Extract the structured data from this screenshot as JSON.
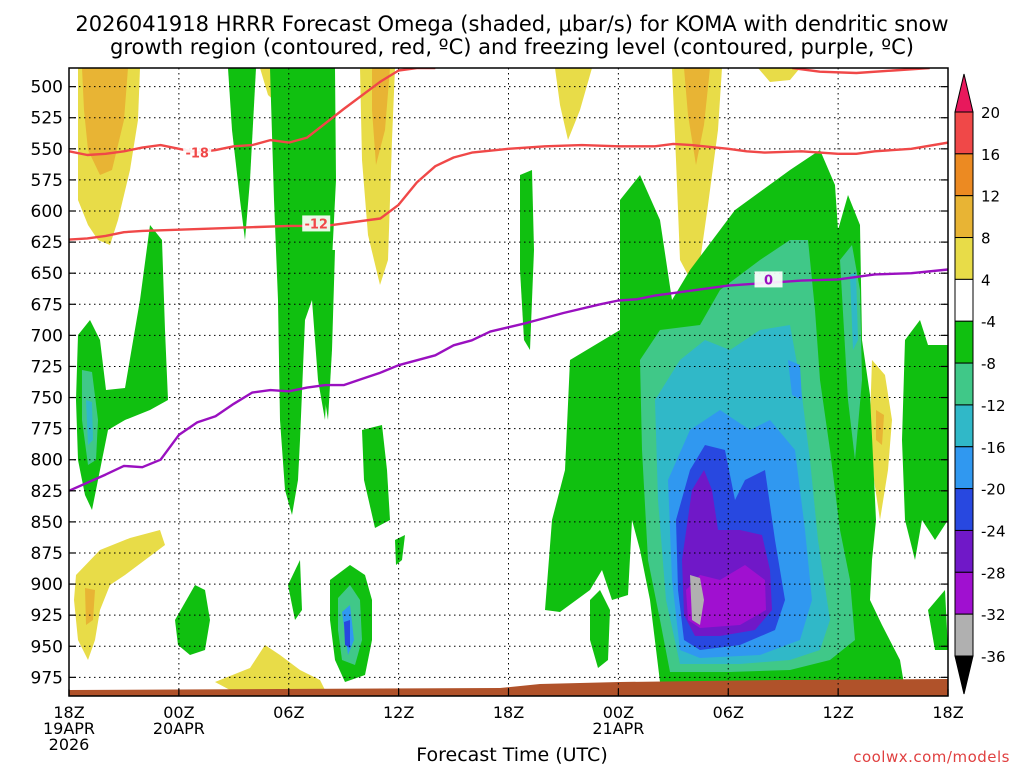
{
  "chart_data": {
    "type": "heatmap",
    "title_line1": "2026041918 HRRR Forecast Omega (shaded, μbar/s) for KOMA with dendritic snow",
    "title_line2": "growth region (contoured, red, ºC) and freezing level (contoured, purple, ºC)",
    "xlabel": "Forecast Time (UTC)",
    "credit": "coolwx.com/models",
    "x_range_hours": [
      0,
      48
    ],
    "y_range_hPa": [
      990,
      485
    ],
    "y_ticks": [
      500,
      525,
      550,
      575,
      600,
      625,
      650,
      675,
      700,
      725,
      750,
      775,
      800,
      825,
      850,
      875,
      900,
      925,
      950,
      975
    ],
    "x_ticks": [
      {
        "h": 0,
        "lines": [
          "18Z",
          "19APR",
          "2026"
        ]
      },
      {
        "h": 6,
        "lines": [
          "00Z",
          "20APR"
        ]
      },
      {
        "h": 12,
        "lines": [
          "06Z"
        ]
      },
      {
        "h": 18,
        "lines": [
          "12Z"
        ]
      },
      {
        "h": 24,
        "lines": [
          "18Z"
        ]
      },
      {
        "h": 30,
        "lines": [
          "00Z",
          "21APR"
        ]
      },
      {
        "h": 36,
        "lines": [
          "06Z"
        ]
      },
      {
        "h": 42,
        "lines": [
          "12Z"
        ]
      },
      {
        "h": 48,
        "lines": [
          "18Z"
        ]
      }
    ],
    "colorbar": {
      "labels": [
        "20",
        "16",
        "12",
        "8",
        "4",
        "-4",
        "-8",
        "-12",
        "-16",
        "-20",
        "-24",
        "-28",
        "-32",
        "-36"
      ],
      "colors": [
        "#e8185c",
        "#f04848",
        "#ec8a22",
        "#e8b434",
        "#e8dc48",
        "#ffffff",
        "#10c010",
        "#40c888",
        "#30b8c8",
        "#3098f0",
        "#2848e0",
        "#7018c8",
        "#a010d0",
        "#b0b0b0",
        "#000000"
      ]
    },
    "contours": [
      {
        "name": "dgz-minus18",
        "color": "#f04848",
        "label": "-18",
        "label_at": [
          7.0,
          553
        ],
        "points": [
          [
            0,
            552
          ],
          [
            1,
            555
          ],
          [
            2,
            554
          ],
          [
            3,
            552
          ],
          [
            4,
            549
          ],
          [
            5,
            547
          ],
          [
            6,
            550
          ],
          [
            7,
            553
          ],
          [
            8,
            551
          ],
          [
            9,
            548
          ],
          [
            10,
            547
          ],
          [
            11,
            543
          ],
          [
            12,
            545
          ],
          [
            13,
            541
          ],
          [
            15,
            518
          ],
          [
            17,
            496
          ],
          [
            18,
            487
          ],
          [
            19,
            485
          ],
          [
            20,
            485
          ]
        ]
      },
      {
        "name": "dgz-minus12",
        "color": "#f04848",
        "label": "-12",
        "label_at": [
          13.5,
          610
        ],
        "points": [
          [
            0,
            623
          ],
          [
            1,
            622
          ],
          [
            2,
            620
          ],
          [
            3,
            617
          ],
          [
            4,
            616
          ],
          [
            6,
            615
          ],
          [
            8,
            614
          ],
          [
            10,
            613
          ],
          [
            12,
            612
          ],
          [
            14,
            612
          ],
          [
            15,
            610
          ],
          [
            17,
            606
          ],
          [
            18,
            595
          ],
          [
            19,
            577
          ],
          [
            20,
            564
          ],
          [
            21,
            557
          ],
          [
            22,
            553
          ],
          [
            24,
            550
          ],
          [
            26,
            548
          ],
          [
            28,
            547
          ],
          [
            30,
            548
          ],
          [
            32,
            548
          ],
          [
            33,
            546
          ],
          [
            34,
            547
          ],
          [
            36,
            550
          ],
          [
            37,
            552
          ],
          [
            38,
            553
          ],
          [
            40,
            552
          ],
          [
            42,
            554
          ],
          [
            43,
            554
          ],
          [
            44,
            552
          ],
          [
            46,
            550
          ],
          [
            48,
            545
          ]
        ]
      },
      {
        "name": "dgz-minus12-top",
        "color": "#f04848",
        "label": "",
        "label_at": [
          0,
          0
        ],
        "points": [
          [
            39.5,
            485
          ],
          [
            41,
            488
          ],
          [
            43,
            489
          ],
          [
            45,
            487
          ],
          [
            47,
            485
          ]
        ]
      },
      {
        "name": "freezing-level",
        "color": "#9a10c0",
        "label": "0",
        "label_at": [
          38.2,
          655
        ],
        "points": [
          [
            0,
            825
          ],
          [
            2,
            812
          ],
          [
            3,
            805
          ],
          [
            4,
            806
          ],
          [
            5,
            800
          ],
          [
            6,
            780
          ],
          [
            7,
            770
          ],
          [
            8,
            765
          ],
          [
            9,
            755
          ],
          [
            10,
            746
          ],
          [
            11,
            744
          ],
          [
            12,
            745
          ],
          [
            13,
            742
          ],
          [
            14,
            740
          ],
          [
            15,
            740
          ],
          [
            16,
            735
          ],
          [
            17,
            730
          ],
          [
            18,
            724
          ],
          [
            20,
            716
          ],
          [
            21,
            708
          ],
          [
            22,
            704
          ],
          [
            23,
            697
          ],
          [
            25,
            690
          ],
          [
            27,
            682
          ],
          [
            29,
            675
          ],
          [
            30,
            672
          ],
          [
            31,
            671
          ],
          [
            32,
            668
          ],
          [
            34,
            664
          ],
          [
            36,
            660
          ],
          [
            38,
            658
          ],
          [
            40,
            656
          ],
          [
            42,
            655
          ],
          [
            44,
            651
          ],
          [
            46,
            650
          ],
          [
            48,
            647
          ]
        ]
      }
    ]
  }
}
